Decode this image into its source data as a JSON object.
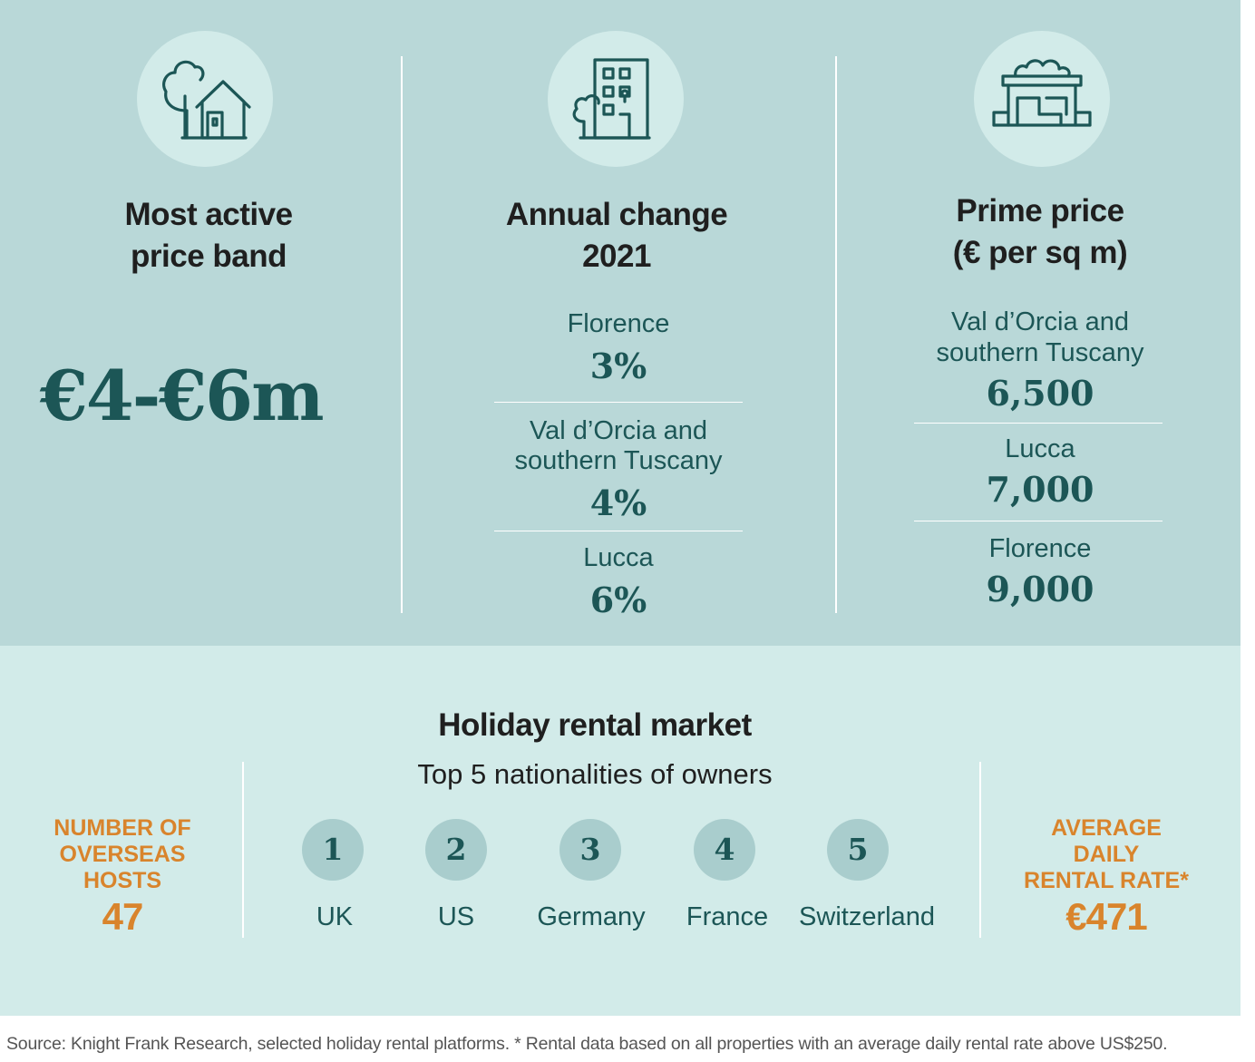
{
  "colors": {
    "top_bg": "#b9d8d8",
    "bottom_bg": "#d2ebe9",
    "teal_text": "#1c5656",
    "orange": "#d9842c",
    "rank_circle": "#a9cdcd"
  },
  "panels": {
    "price_band": {
      "icon": "house-with-tree-icon",
      "heading_line1": "Most active",
      "heading_line2": "price band",
      "value": "€4-€6m"
    },
    "annual_change": {
      "icon": "apartment-building-icon",
      "heading_line1": "Annual change",
      "heading_line2": "2021",
      "items": [
        {
          "label_line1": "Florence",
          "label_line2": "",
          "value": "3%"
        },
        {
          "label_line1": "Val d’Orcia and",
          "label_line2": "southern Tuscany",
          "value": "4%"
        },
        {
          "label_line1": "Lucca",
          "label_line2": "",
          "value": "6%"
        }
      ]
    },
    "prime_price": {
      "icon": "storefront-icon",
      "heading_line1": "Prime price",
      "heading_line2": "(€ per sq m)",
      "items": [
        {
          "label_line1": "Val d’Orcia and",
          "label_line2": "southern Tuscany",
          "value": "6,500"
        },
        {
          "label_line1": "Lucca",
          "label_line2": "",
          "value": "7,000"
        },
        {
          "label_line1": "Florence",
          "label_line2": "",
          "value": "9,000"
        }
      ]
    }
  },
  "rental": {
    "title": "Holiday rental market",
    "subtitle": "Top 5 nationalities of owners",
    "hosts": {
      "line1": "NUMBER OF",
      "line2": "OVERSEAS",
      "line3": "HOSTS",
      "value": "47"
    },
    "rate": {
      "line1": "AVERAGE",
      "line2": "DAILY",
      "line3": "RENTAL RATE*",
      "value": "€471"
    },
    "nationalities": [
      {
        "rank": "1",
        "name": "UK"
      },
      {
        "rank": "2",
        "name": "US"
      },
      {
        "rank": "3",
        "name": "Germany"
      },
      {
        "rank": "4",
        "name": "France"
      },
      {
        "rank": "5",
        "name": "Switzerland"
      }
    ]
  },
  "source": "Source: Knight Frank Research, selected holiday rental platforms. * Rental data based on all properties with an average daily rental rate above US$250."
}
